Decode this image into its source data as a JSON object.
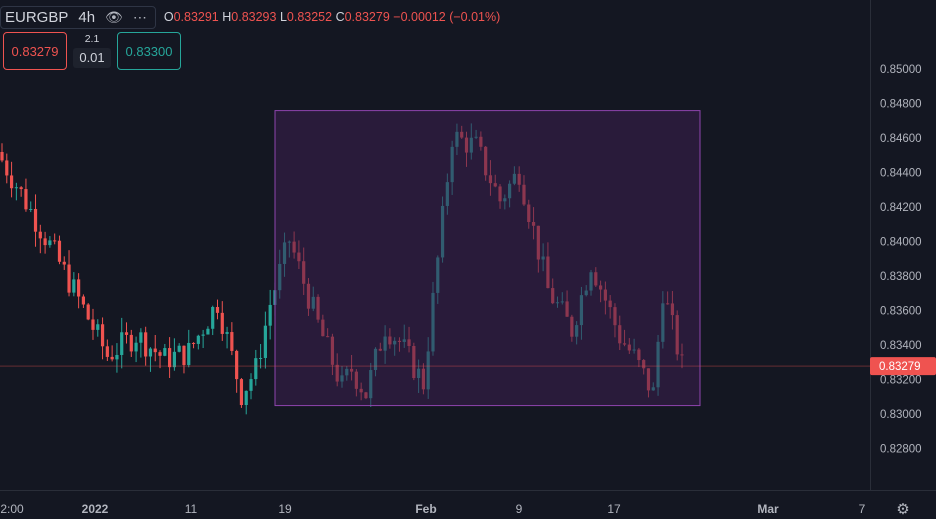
{
  "header": {
    "symbol": "EURGBP",
    "timeframe": "4h",
    "eye_icon": "eye-icon",
    "more_icon": "more-dots-icon",
    "ohlc": {
      "o_label": "O",
      "o": "0.83291",
      "h_label": "H",
      "h": "0.83293",
      "l_label": "L",
      "l": "0.83252",
      "c_label": "C",
      "c": "0.83279",
      "change": "−0.00012 (−0.01%)"
    }
  },
  "trade": {
    "sell": "0.83279",
    "spread": "2.1",
    "quantity": "0.01",
    "buy": "0.83300"
  },
  "settings_icon": "gear-icon",
  "colors": {
    "bg": "#141722",
    "up": "#26a69a",
    "down": "#ef5350",
    "box_fill": "#3a1f4f",
    "box_stroke": "#8e44ad"
  },
  "chart_data": {
    "type": "candlestick",
    "symbol": "EURGBP",
    "interval": "4h",
    "ylim": [
      0.827,
      0.85
    ],
    "y_ticks": [
      "0.82800",
      "0.83000",
      "0.83200",
      "0.83400",
      "0.83600",
      "0.83800",
      "0.84000",
      "0.84200",
      "0.84400",
      "0.84600",
      "0.84800",
      "0.85000"
    ],
    "x_ticks": [
      "2:00",
      "2022",
      "11",
      "19",
      "Feb",
      "9",
      "17",
      "Mar",
      "7"
    ],
    "last_price": "0.83279",
    "price_line_color": "#ef5350",
    "rectangle": {
      "y_top": 0.8476,
      "y_bottom": 0.8305
    },
    "segments": [
      [
        0.8452,
        0.8433,
        4
      ],
      [
        0.8433,
        0.8398,
        7
      ],
      [
        0.8398,
        0.8372,
        5
      ],
      [
        0.8372,
        0.8334,
        7
      ],
      [
        0.8334,
        0.8346,
        6
      ],
      [
        0.8346,
        0.8332,
        6
      ],
      [
        0.8332,
        0.8336,
        5
      ],
      [
        0.8336,
        0.8365,
        6
      ],
      [
        0.8365,
        0.8312,
        5
      ],
      [
        0.8312,
        0.8326,
        3
      ],
      [
        0.8326,
        0.8364,
        3
      ],
      [
        0.8364,
        0.8401,
        4
      ],
      [
        0.8401,
        0.8352,
        6
      ],
      [
        0.8352,
        0.8316,
        5
      ],
      [
        0.8316,
        0.8326,
        2
      ],
      [
        0.8326,
        0.8312,
        3
      ],
      [
        0.8312,
        0.8351,
        4
      ],
      [
        0.8351,
        0.8342,
        3
      ],
      [
        0.8342,
        0.8318,
        5
      ],
      [
        0.8318,
        0.8461,
        6
      ],
      [
        0.8461,
        0.8455,
        5
      ],
      [
        0.8455,
        0.8424,
        5
      ],
      [
        0.8424,
        0.8441,
        4
      ],
      [
        0.8441,
        0.8372,
        6
      ],
      [
        0.8372,
        0.8349,
        5
      ],
      [
        0.8349,
        0.8388,
        4
      ],
      [
        0.8388,
        0.8345,
        6
      ],
      [
        0.8345,
        0.8333,
        3
      ],
      [
        0.8333,
        0.8312,
        4
      ],
      [
        0.8312,
        0.8372,
        2
      ],
      [
        0.8372,
        0.8328,
        4
      ]
    ]
  }
}
